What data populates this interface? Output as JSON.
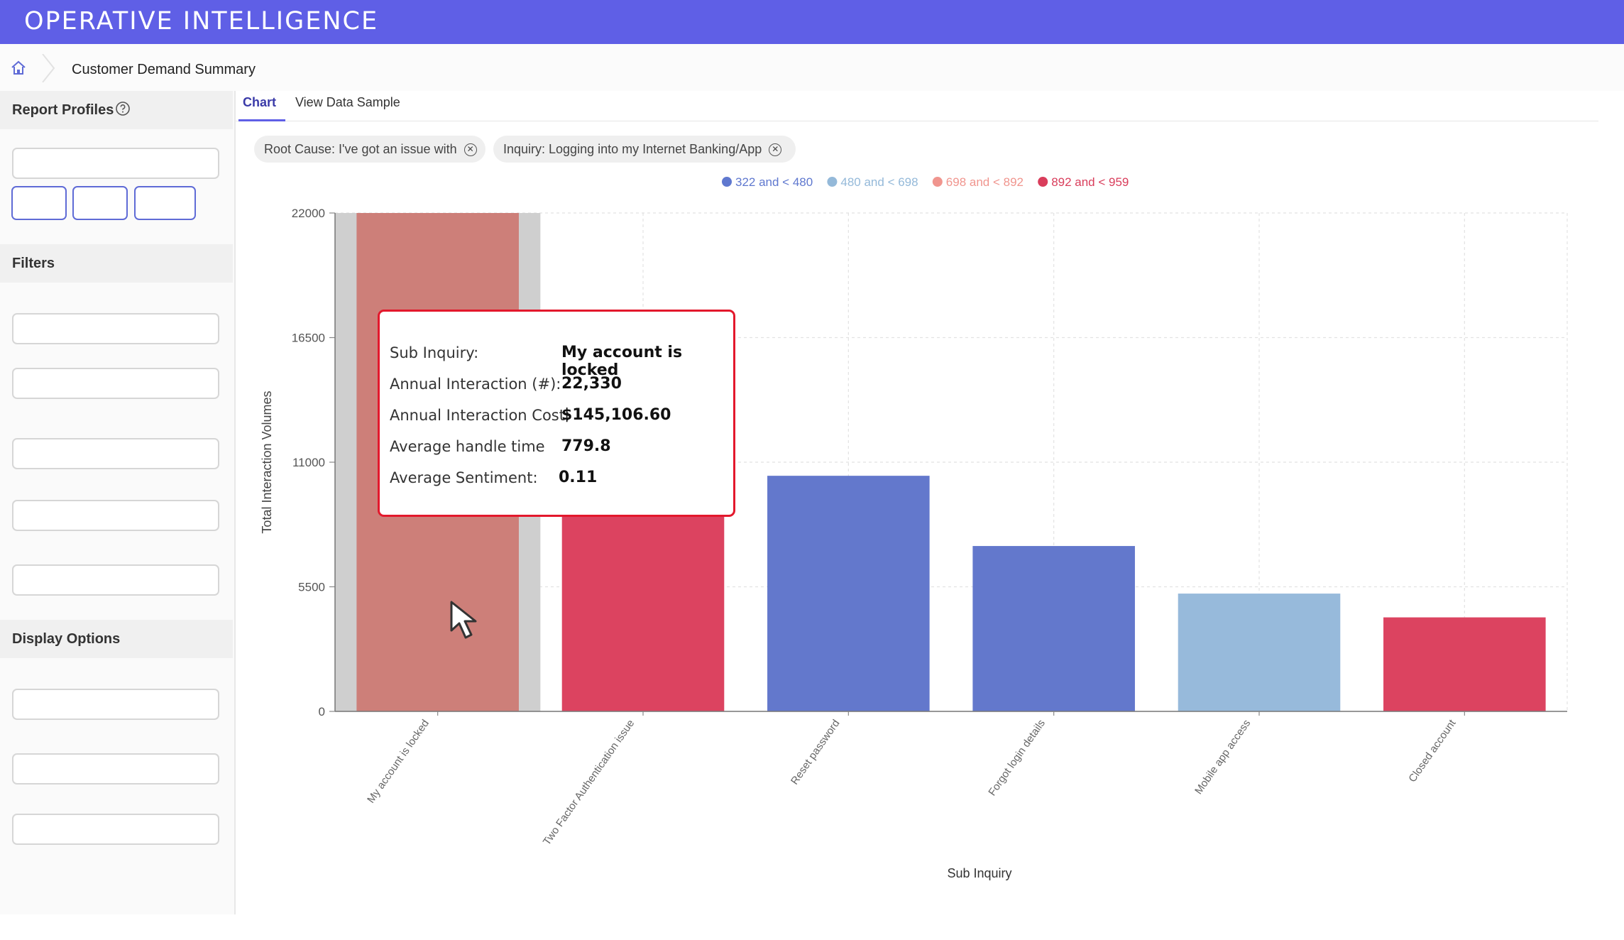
{
  "app": {
    "title": "OPERATIVE INTELLIGENCE"
  },
  "breadcrumb": {
    "current": "Customer Demand Summary"
  },
  "sidebar": {
    "report_profiles_label": "Report Profiles",
    "filters_label": "Filters",
    "display_options_label": "Display Options"
  },
  "tabs": [
    {
      "label": "Chart",
      "active": true
    },
    {
      "label": "View Data Sample",
      "active": false
    }
  ],
  "chips": [
    {
      "label": "Root Cause: I've got an issue with"
    },
    {
      "label": "Inquiry: Logging into my Internet Banking/App"
    }
  ],
  "tooltip": {
    "rows": [
      {
        "label": "Sub Inquiry:",
        "value": "My account is locked"
      },
      {
        "label": "Annual Interaction (#):",
        "value": "22,330"
      },
      {
        "label": "Annual Interaction Cost:",
        "value": "$145,106.60"
      },
      {
        "label": "Average handle time",
        "value": "779.8"
      },
      {
        "label": "Average Sentiment:",
        "value": "0.11"
      }
    ]
  },
  "chart_data": {
    "type": "bar",
    "xlabel": "Sub Inquiry",
    "ylabel": "Total Interaction Volumes",
    "ylim": [
      0,
      22000
    ],
    "yticks": [
      0,
      5500,
      11000,
      16500,
      22000
    ],
    "grid": true,
    "legend_position": "top-center",
    "legend": [
      {
        "label": "322 and < 480",
        "color": "#5f78cf"
      },
      {
        "label": "480 and < 698",
        "color": "#94b9d9"
      },
      {
        "label": "698 and < 892",
        "color": "#f0958e"
      },
      {
        "label": "892 and < 959",
        "color": "#d93d5b"
      }
    ],
    "categories": [
      "My account is locked",
      "Two Factor Authentication issue",
      "Reset password",
      "Forgot login details",
      "Mobile app access",
      "Closed account"
    ],
    "values": [
      22330,
      9700,
      10400,
      7300,
      5200,
      4150
    ],
    "colors": [
      "#cd7f79",
      "#dc4360",
      "#6378cc",
      "#6378cc",
      "#97badb",
      "#dc4360"
    ],
    "highlighted_index": 0
  }
}
